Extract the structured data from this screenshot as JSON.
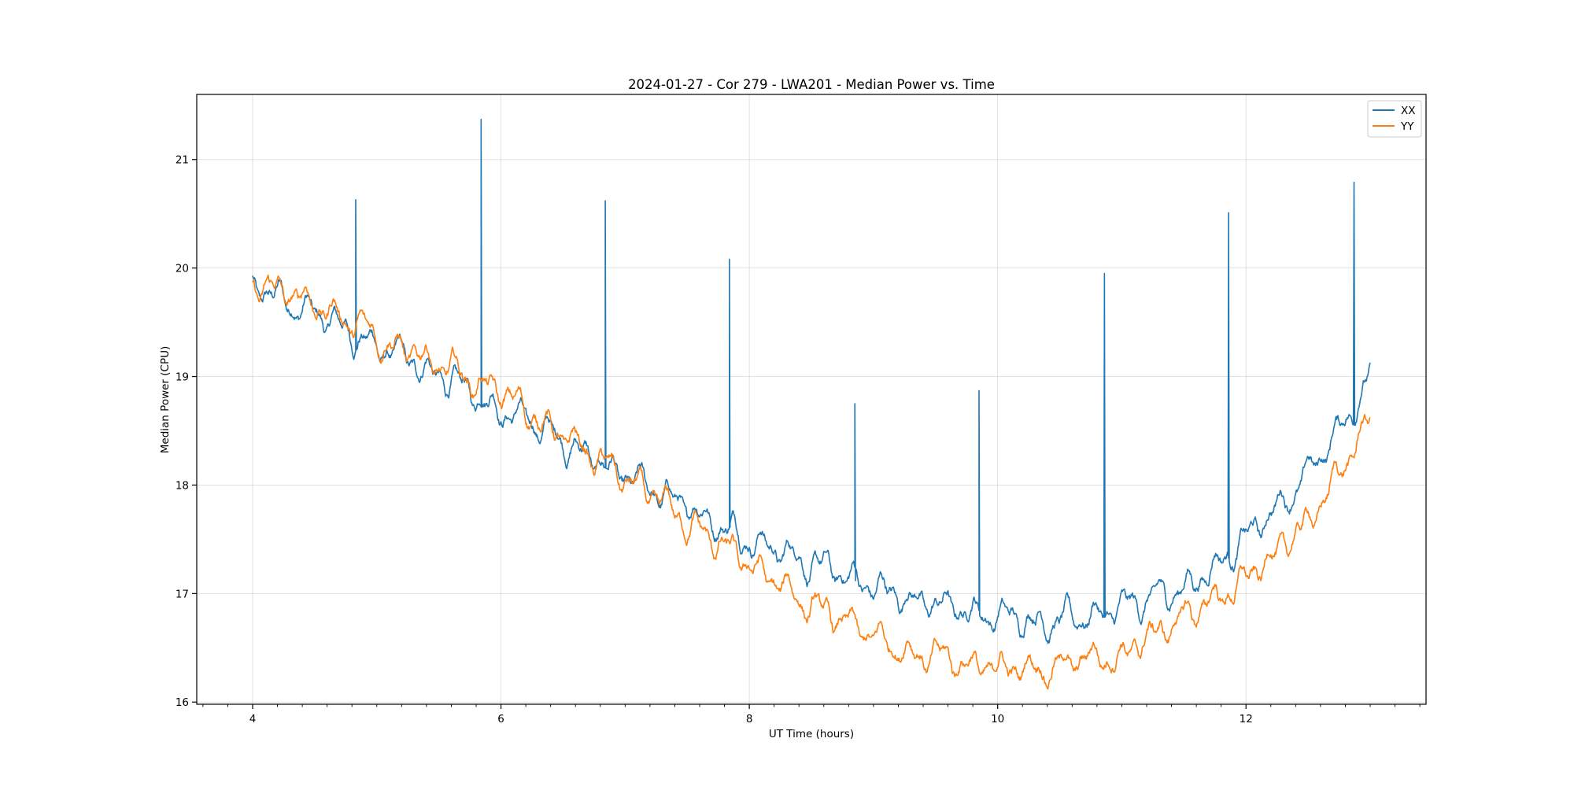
{
  "chart_data": {
    "type": "line",
    "title": "2024-01-27 - Cor 279 - LWA201 - Median Power vs. Time",
    "xlabel": "UT Time (hours)",
    "ylabel": "Median Power (CPU)",
    "xlim": [
      3.55,
      13.45
    ],
    "ylim": [
      15.98,
      21.6
    ],
    "xticks": [
      4,
      6,
      8,
      10,
      12
    ],
    "xtick_labels": [
      "4",
      "6",
      "8",
      "10",
      "12"
    ],
    "yticks": [
      16,
      17,
      18,
      19,
      20,
      21
    ],
    "ytick_labels": [
      "16",
      "17",
      "18",
      "19",
      "20",
      "21"
    ],
    "grid": true,
    "legend_position": "top-right",
    "series": [
      {
        "name": "XX",
        "color": "#1f77b4",
        "baseline": [
          [
            4.0,
            19.82
          ],
          [
            4.5,
            19.58
          ],
          [
            5.0,
            19.28
          ],
          [
            5.5,
            19.0
          ],
          [
            6.0,
            18.72
          ],
          [
            6.5,
            18.42
          ],
          [
            7.0,
            18.05
          ],
          [
            7.5,
            17.8
          ],
          [
            8.0,
            17.52
          ],
          [
            8.5,
            17.28
          ],
          [
            9.0,
            17.05
          ],
          [
            9.5,
            16.9
          ],
          [
            10.0,
            16.8
          ],
          [
            10.5,
            16.75
          ],
          [
            11.0,
            16.85
          ],
          [
            11.5,
            17.05
          ],
          [
            12.0,
            17.5
          ],
          [
            12.5,
            18.1
          ],
          [
            12.8,
            18.6
          ],
          [
            13.0,
            19.02
          ]
        ],
        "spikes": [
          {
            "x": 4.83,
            "y": 20.63
          },
          {
            "x": 5.84,
            "y": 21.37
          },
          {
            "x": 6.84,
            "y": 20.62
          },
          {
            "x": 7.84,
            "y": 20.08
          },
          {
            "x": 8.85,
            "y": 18.75
          },
          {
            "x": 9.85,
            "y": 18.87
          },
          {
            "x": 10.86,
            "y": 19.95
          },
          {
            "x": 11.86,
            "y": 20.51
          },
          {
            "x": 12.87,
            "y": 20.79
          }
        ]
      },
      {
        "name": "YY",
        "color": "#ff7f0e",
        "baseline": [
          [
            4.0,
            19.85
          ],
          [
            4.5,
            19.68
          ],
          [
            5.0,
            19.38
          ],
          [
            5.5,
            19.1
          ],
          [
            6.0,
            18.85
          ],
          [
            6.5,
            18.45
          ],
          [
            7.0,
            18.05
          ],
          [
            7.5,
            17.65
          ],
          [
            8.0,
            17.25
          ],
          [
            8.5,
            16.88
          ],
          [
            9.0,
            16.58
          ],
          [
            9.5,
            16.42
          ],
          [
            10.0,
            16.3
          ],
          [
            10.5,
            16.35
          ],
          [
            11.0,
            16.45
          ],
          [
            11.5,
            16.78
          ],
          [
            12.0,
            17.12
          ],
          [
            12.5,
            17.65
          ],
          [
            12.8,
            18.2
          ],
          [
            13.0,
            18.6
          ]
        ]
      }
    ]
  }
}
